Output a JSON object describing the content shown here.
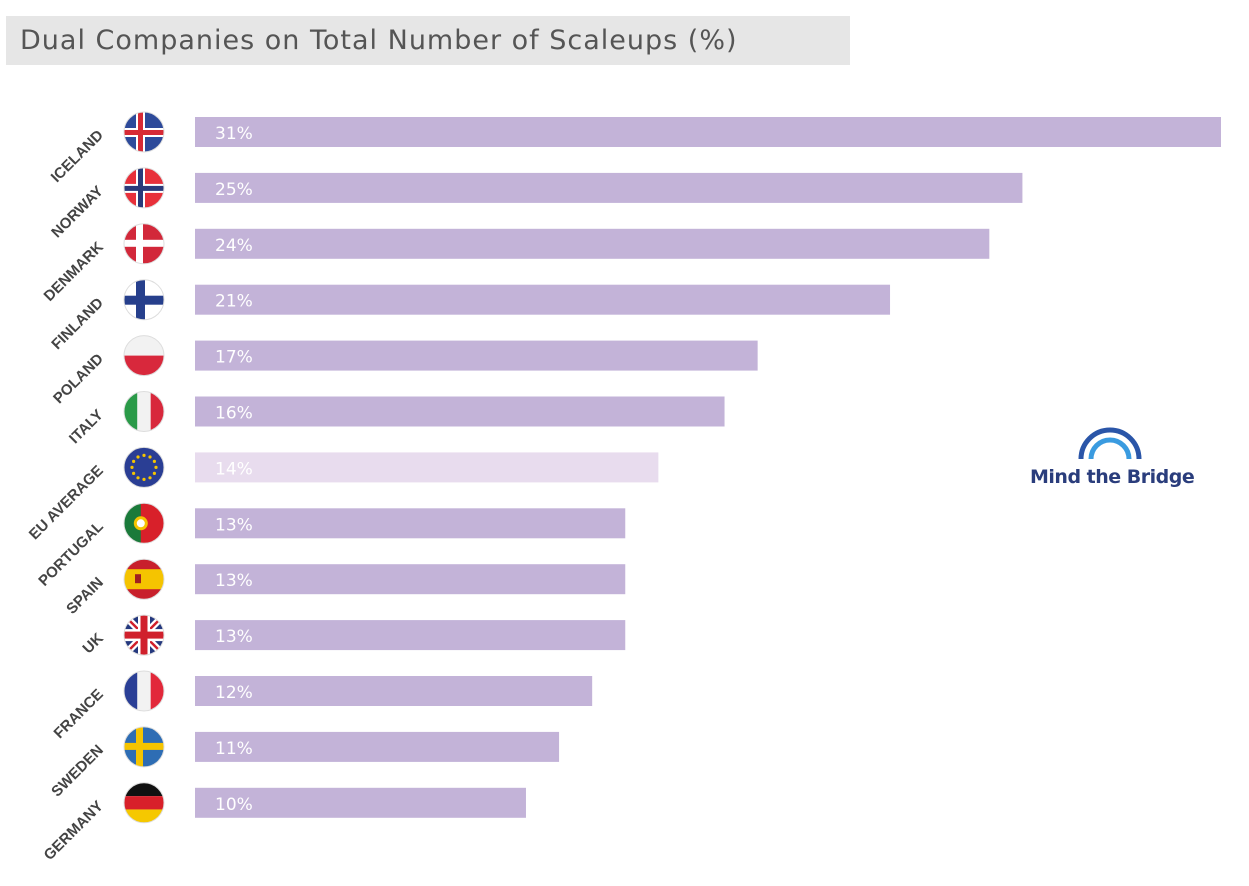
{
  "chart_data": {
    "type": "bar",
    "orientation": "horizontal",
    "title": "Dual Companies on Total Number of Scaleups (%)",
    "categories": [
      "ICELAND",
      "NORWAY",
      "DENMARK",
      "FINLAND",
      "POLAND",
      "ITALY",
      "EU AVERAGE",
      "PORTUGAL",
      "SPAIN",
      "UK",
      "FRANCE",
      "SWEDEN",
      "GERMANY"
    ],
    "values": [
      31,
      25,
      24,
      21,
      17,
      16,
      14,
      13,
      13,
      13,
      12,
      11,
      10
    ],
    "value_labels": [
      "31%",
      "25%",
      "24%",
      "21%",
      "17%",
      "16%",
      "14%",
      "13%",
      "13%",
      "13%",
      "12%",
      "11%",
      "10%"
    ],
    "flags": [
      "is",
      "no",
      "dk",
      "fi",
      "pl",
      "it",
      "eu",
      "pt",
      "es",
      "uk",
      "fr",
      "se",
      "de"
    ],
    "highlight": "EU AVERAGE",
    "xlim": [
      0,
      31
    ],
    "grid": false,
    "colors": {
      "bar": "#c3b3d8",
      "highlight": "#e8dcee",
      "highlight_text": "#666666"
    }
  },
  "logo": {
    "text": "Mind the Bridge"
  }
}
